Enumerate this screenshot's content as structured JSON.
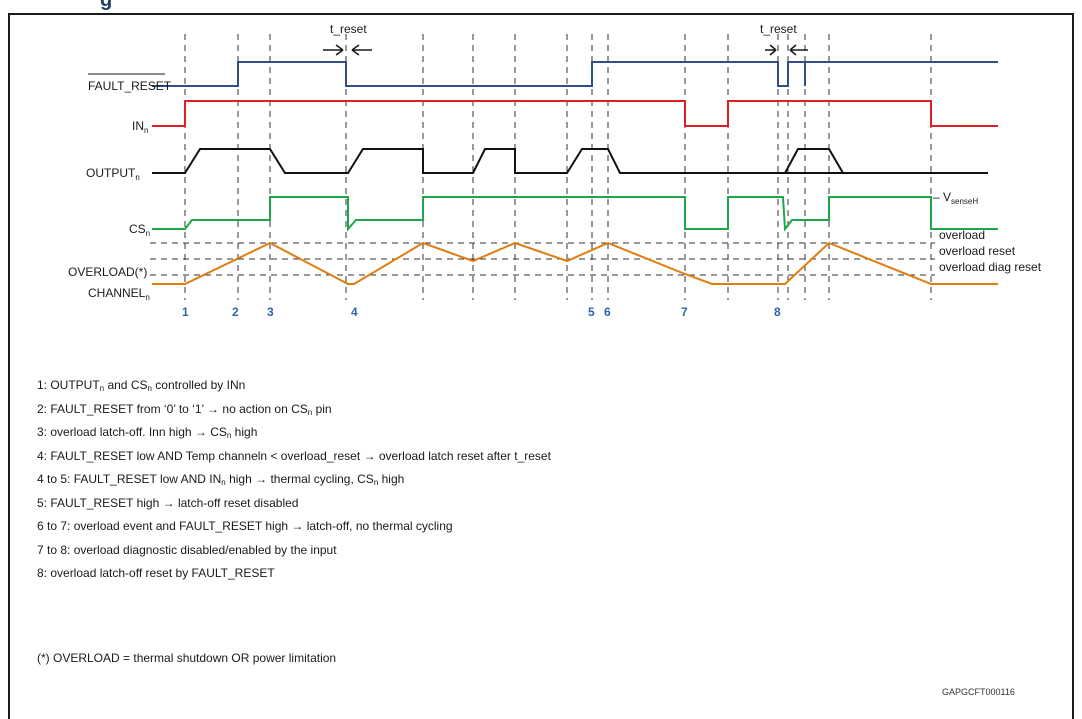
{
  "title": "g",
  "signals": {
    "fault_reset": "FAULT_RESET",
    "in": {
      "base": "IN",
      "sub": "n"
    },
    "output": {
      "base": "OUTPUT",
      "sub": "n"
    },
    "cs": {
      "base": "CS",
      "sub": "n"
    },
    "overload_line1": "OVERLOAD(*)",
    "overload_line2": {
      "base": "CHANNEL",
      "sub": "n"
    }
  },
  "t_reset_label": "t_reset",
  "vsense_label": {
    "prefix": "– V",
    "sub": "senseH"
  },
  "level_labels": {
    "overload": "overload",
    "overload_reset": "overload reset",
    "overload_diag_reset": "overload diag reset"
  },
  "events": [
    {
      "num": "1"
    },
    {
      "num": "2"
    },
    {
      "num": "3"
    },
    {
      "num": "4"
    },
    {
      "num": "5"
    },
    {
      "num": "6"
    },
    {
      "num": "7"
    },
    {
      "num": "8"
    }
  ],
  "notes": [
    {
      "parts": [
        {
          "t": "1: OUTPUT"
        },
        {
          "s": "n"
        },
        {
          "t": " and CS"
        },
        {
          "s": "n"
        },
        {
          "t": " controlled by INn"
        }
      ]
    },
    {
      "parts": [
        {
          "t": "2: FAULT_RESET from ‘0’ to ‘1’ → no action on CS"
        },
        {
          "s": "n"
        },
        {
          "t": " pin"
        }
      ]
    },
    {
      "parts": [
        {
          "t": "3: overload latch-off. Inn high → CS"
        },
        {
          "s": "n"
        },
        {
          "t": " high"
        }
      ]
    },
    {
      "parts": [
        {
          "t": "4: FAULT_RESET low AND Temp channeln < overload_reset → overload latch reset after t_reset"
        }
      ]
    },
    {
      "parts": [
        {
          "t": "4 to 5: FAULT_RESET low AND IN"
        },
        {
          "s": "n"
        },
        {
          "t": " high → thermal cycling, CS"
        },
        {
          "s": "n"
        },
        {
          "t": " high"
        }
      ]
    },
    {
      "parts": [
        {
          "t": "5: FAULT_RESET high → latch-off reset disabled"
        }
      ]
    },
    {
      "parts": [
        {
          "t": "6 to 7: overload event and FAULT_RESET high → latch-off, no thermal cycling"
        }
      ]
    },
    {
      "parts": [
        {
          "t": "7 to 8: overload diagnostic disabled/enabled by the input"
        }
      ]
    },
    {
      "parts": [
        {
          "t": "8: overload latch-off reset by FAULT_RESET"
        }
      ]
    }
  ],
  "footnote": "(*) OVERLOAD = thermal shutdown OR power limitation",
  "figure_code": "GAPGCFT000116",
  "colors": {
    "fault_reset": "#2e4f87",
    "in": "#e02020",
    "output": "#111111",
    "cs": "#1fa64a",
    "overload": "#e07d10",
    "event_number": "#2e64a8",
    "dashed": "#333333"
  }
}
